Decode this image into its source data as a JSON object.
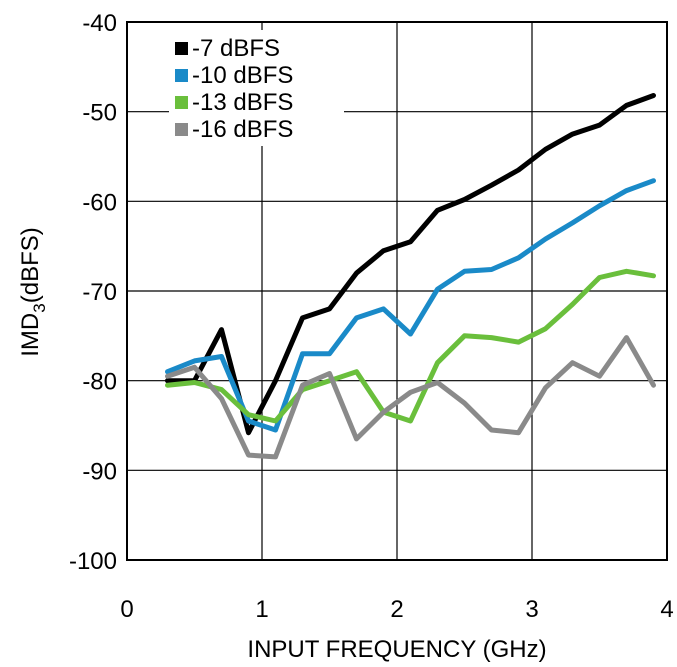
{
  "chart_data": {
    "type": "line",
    "xlabel": "INPUT FREQUENCY (GHz)",
    "ylabel_main": "IMD",
    "ylabel_sub": "3",
    "ylabel_rest": "(dBFS)",
    "xlim": [
      0,
      4
    ],
    "ylim": [
      -100,
      -40
    ],
    "xticks": [
      0,
      1,
      2,
      3,
      4
    ],
    "yticks": [
      -40,
      -50,
      -60,
      -70,
      -80,
      -90,
      -100
    ],
    "grid": true,
    "legend_position": "top-left",
    "series": [
      {
        "name": "-7 dBFS",
        "color": "#000000",
        "x": [
          0.3,
          0.5,
          0.7,
          0.9,
          1.1,
          1.3,
          1.5,
          1.7,
          1.9,
          2.1,
          2.3,
          2.5,
          2.7,
          2.9,
          3.1,
          3.3,
          3.5,
          3.7,
          3.9
        ],
        "y": [
          -80.0,
          -80.0,
          -74.3,
          -85.8,
          -80.0,
          -73.0,
          -72.0,
          -68.0,
          -65.5,
          -64.5,
          -61.0,
          -59.8,
          -58.2,
          -56.5,
          -54.2,
          -52.5,
          -51.5,
          -49.3,
          -48.2
        ]
      },
      {
        "name": "-10 dBFS",
        "color": "#1a8ac8",
        "x": [
          0.3,
          0.5,
          0.7,
          0.9,
          1.1,
          1.3,
          1.5,
          1.7,
          1.9,
          2.1,
          2.3,
          2.5,
          2.7,
          2.9,
          3.1,
          3.3,
          3.5,
          3.7,
          3.9
        ],
        "y": [
          -79.0,
          -77.8,
          -77.3,
          -84.5,
          -85.5,
          -77.0,
          -77.0,
          -73.0,
          -72.0,
          -74.8,
          -69.8,
          -67.8,
          -67.6,
          -66.3,
          -64.2,
          -62.4,
          -60.5,
          -58.8,
          -57.7
        ]
      },
      {
        "name": "-13 dBFS",
        "color": "#6abf3c",
        "x": [
          0.3,
          0.5,
          0.7,
          0.9,
          1.1,
          1.3,
          1.5,
          1.7,
          1.9,
          2.1,
          2.3,
          2.5,
          2.7,
          2.9,
          3.1,
          3.3,
          3.5,
          3.7,
          3.9
        ],
        "y": [
          -80.5,
          -80.2,
          -81.0,
          -83.8,
          -84.5,
          -81.0,
          -80.0,
          -79.0,
          -83.5,
          -84.5,
          -78.0,
          -75.0,
          -75.2,
          -75.7,
          -74.2,
          -71.5,
          -68.5,
          -67.8,
          -68.3
        ]
      },
      {
        "name": "-16 dBFS",
        "color": "#8a8a8a",
        "x": [
          0.3,
          0.5,
          0.7,
          0.9,
          1.1,
          1.3,
          1.5,
          1.7,
          1.9,
          2.1,
          2.3,
          2.5,
          2.7,
          2.9,
          3.1,
          3.3,
          3.5,
          3.7,
          3.9
        ],
        "y": [
          -79.5,
          -78.5,
          -82.0,
          -88.3,
          -88.5,
          -80.5,
          -79.2,
          -86.5,
          -83.5,
          -81.3,
          -80.2,
          -82.5,
          -85.5,
          -85.8,
          -80.8,
          -78.0,
          -79.5,
          -75.2,
          -80.5
        ]
      }
    ]
  }
}
